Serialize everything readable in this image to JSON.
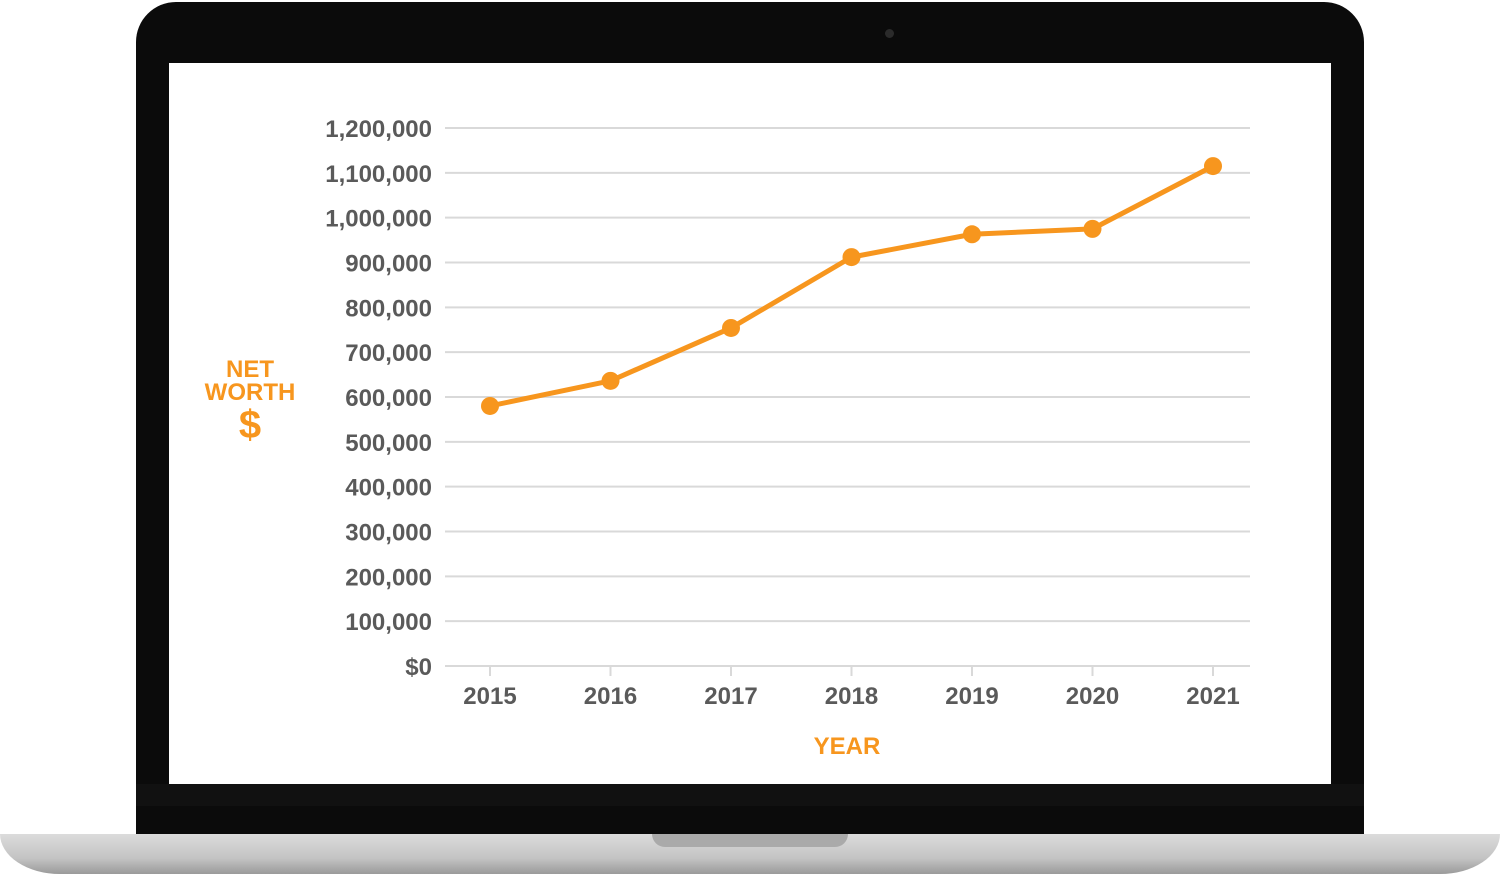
{
  "theme": {
    "accent": "#f7961e",
    "grid": "#d9d9d9",
    "tick_text": "#5a5a5a",
    "device_frame": "#0b0b0b"
  },
  "device": {
    "type": "laptop",
    "icons": [
      "camera-icon"
    ]
  },
  "chart_data": {
    "type": "line",
    "x": [
      "2015",
      "2016",
      "2017",
      "2018",
      "2019",
      "2020",
      "2021"
    ],
    "series": [
      {
        "values": [
          580000,
          636000,
          754000,
          912000,
          963000,
          975000,
          1115000
        ],
        "color": "#f7961e",
        "marker": "circle"
      }
    ],
    "ylabel_lines": [
      "NET",
      "WORTH",
      "$"
    ],
    "xlabel": "YEAR",
    "ylim": [
      0,
      1200000
    ],
    "yticks": [
      0,
      100000,
      200000,
      300000,
      400000,
      500000,
      600000,
      700000,
      800000,
      900000,
      1000000,
      1100000,
      1200000
    ],
    "ytick_labels": [
      "$0",
      "100,000",
      "200,000",
      "300,000",
      "400,000",
      "500,000",
      "600,000",
      "700,000",
      "800,000",
      "900,000",
      "1,000,000",
      "1,100,000",
      "1,200,000"
    ],
    "grid": true,
    "legend": false
  }
}
